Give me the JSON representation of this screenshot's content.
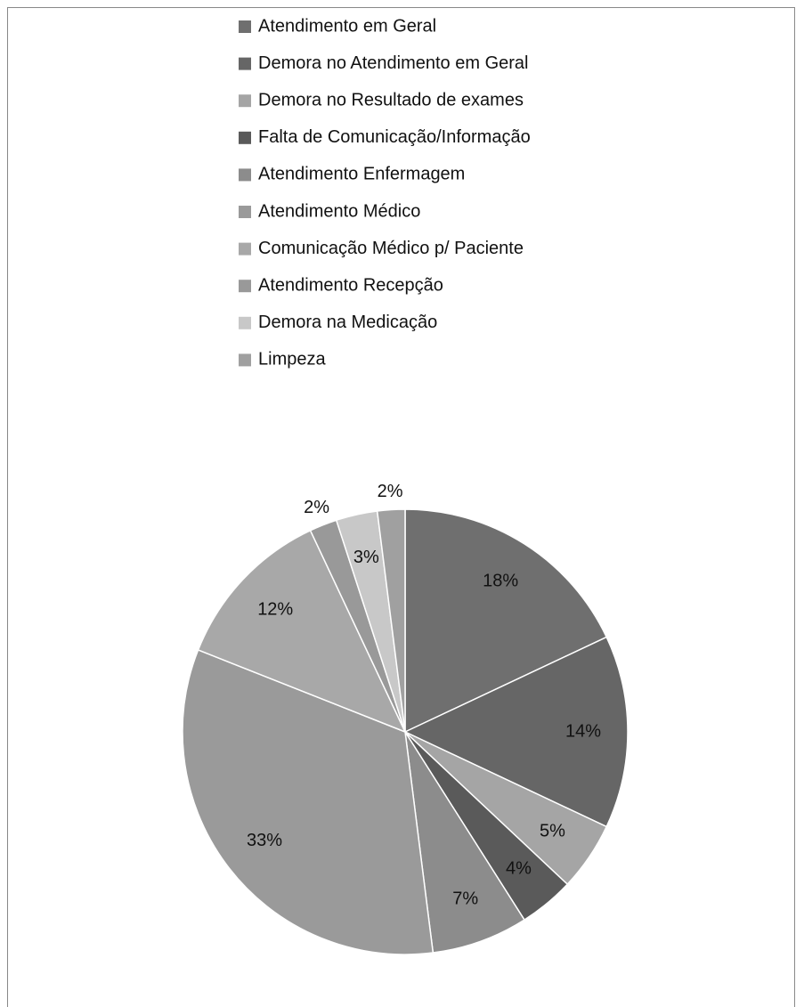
{
  "chart_data": {
    "type": "pie",
    "categories": [
      "Atendimento em Geral",
      "Demora no Atendimento em Geral",
      "Demora no Resultado de exames",
      "Falta de Comunicação/Informação",
      "Atendimento Enfermagem",
      "Atendimento Médico",
      "Comunicação Médico p/ Paciente",
      "Atendimento Recepção",
      "Demora na Medicação",
      "Limpeza"
    ],
    "values": [
      18,
      14,
      5,
      4,
      7,
      33,
      12,
      2,
      3,
      2
    ],
    "value_labels": [
      "18%",
      "14%",
      "5%",
      "4%",
      "7%",
      "33%",
      "12%",
      "2%",
      "3%",
      "2%"
    ],
    "colors": [
      "#6f6f6f",
      "#666666",
      "#a5a5a5",
      "#5a5a5a",
      "#8c8c8c",
      "#9a9a9a",
      "#a8a8a8",
      "#999999",
      "#c8c8c8",
      "#a0a0a0"
    ],
    "legend": "top"
  }
}
